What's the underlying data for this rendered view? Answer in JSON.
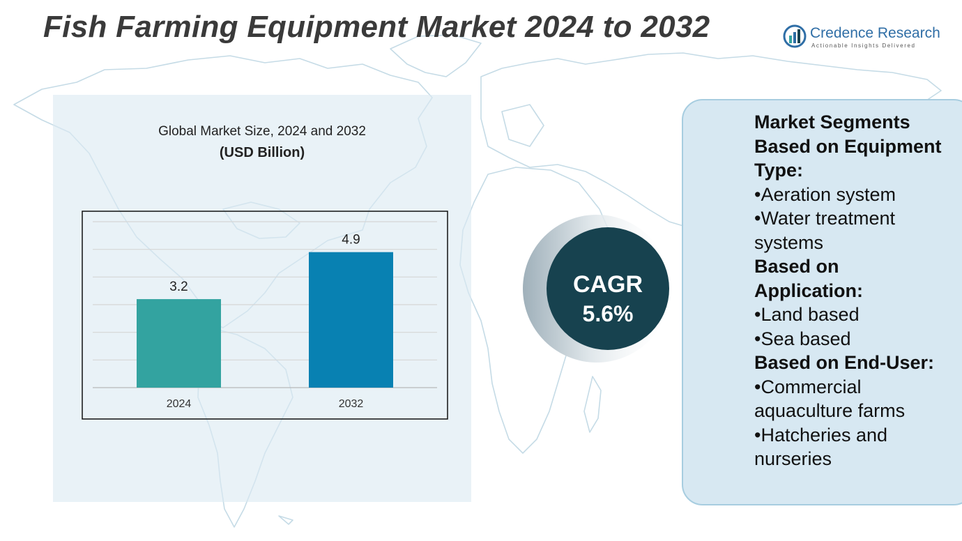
{
  "title": "Fish Farming Equipment Market 2024 to 2032",
  "logo": {
    "name": "Credence Research",
    "tagline": "Actionable Insights Delivered"
  },
  "colors": {
    "bar_2024": "#33a3a0",
    "bar_2032": "#0881b2",
    "cagr_circle": "#17424f",
    "panel_bg": "#dceaf2"
  },
  "chart_data": {
    "type": "bar",
    "title": "Global Market Size, 2024 and 2032",
    "unit": "(USD Billion)",
    "categories": [
      "2024",
      "2032"
    ],
    "values": [
      3.2,
      4.9
    ],
    "value_labels": [
      "3.2",
      "4.9"
    ],
    "ylim": [
      0,
      6
    ],
    "grid": true,
    "legend": "none"
  },
  "cagr": {
    "label": "CAGR",
    "value": "5.6%"
  },
  "segments": [
    {
      "type": "heading",
      "text": "Market Segments"
    },
    {
      "type": "heading",
      "text": "Based on Equipment"
    },
    {
      "type": "heading",
      "text": "Type:"
    },
    {
      "type": "item",
      "text": "•Aeration system"
    },
    {
      "type": "item",
      "text": "•Water treatment"
    },
    {
      "type": "item",
      "text": "systems"
    },
    {
      "type": "heading",
      "text": "Based on"
    },
    {
      "type": "heading",
      "text": "Application:"
    },
    {
      "type": "item",
      "text": "•Land based"
    },
    {
      "type": "item",
      "text": "•Sea based"
    },
    {
      "type": "heading",
      "text": "Based on End-User:"
    },
    {
      "type": "item",
      "text": "•Commercial"
    },
    {
      "type": "item",
      "text": "aquaculture farms"
    },
    {
      "type": "item",
      "text": "•Hatcheries and"
    },
    {
      "type": "item",
      "text": "nurseries"
    }
  ]
}
